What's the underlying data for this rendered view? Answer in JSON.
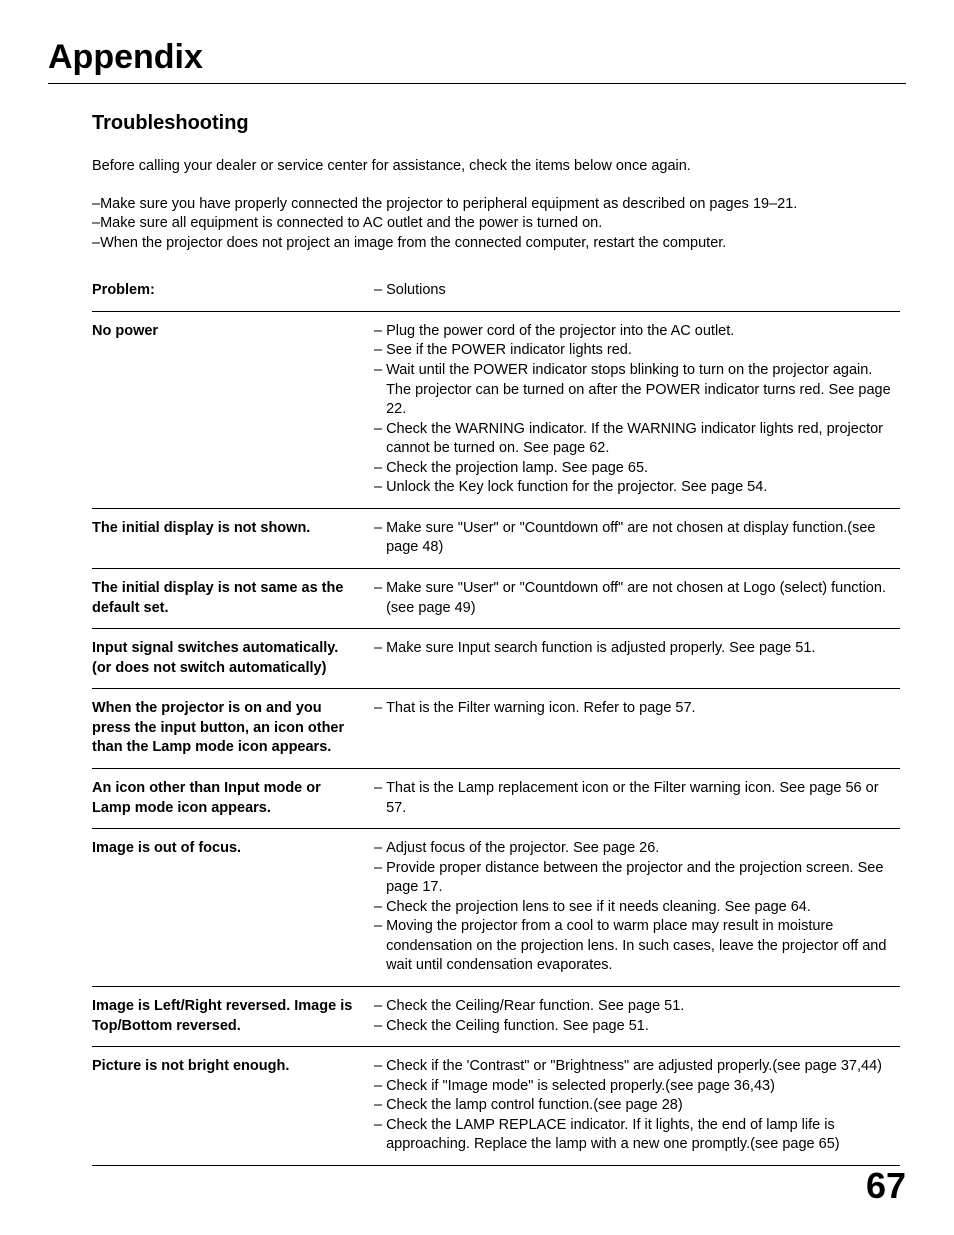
{
  "chapter_title": "Appendix",
  "section_title": "Troubleshooting",
  "intro": "Before calling your dealer or service center for assistance, check the items below once again.",
  "prechecks": [
    "–Make sure you have properly connected the projector to peripheral equipment as described on pages 19–21.",
    "–Make sure all equipment is connected to AC outlet and the power is turned on.",
    "–When the projector does not project an image from the connected computer, restart the computer."
  ],
  "table_header": {
    "problem": "Problem:",
    "solution": "– Solutions"
  },
  "rows": [
    {
      "problem": "No power",
      "solutions": [
        "Plug the power cord of the projector into the AC outlet.",
        "See if the POWER indicator lights red.",
        "Wait until the POWER indicator stops blinking to turn on the projector again. The projector can be turned on after the POWER indicator turns red. See page 22.",
        "Check the WARNING indicator. If the WARNING indicator lights red, projector cannot be turned on. See page 62.",
        "Check the projection lamp. See page 65.",
        "Unlock the Key lock function for the projector. See page 54."
      ]
    },
    {
      "problem": "The initial display is not shown.",
      "solutions": [
        "Make sure \"User\" or \"Countdown off\" are not chosen at display function.(see page 48)"
      ]
    },
    {
      "problem": "The initial display is not same as the default set.",
      "solutions": [
        "Make sure \"User\" or \"Countdown off\" are not chosen at Logo (select) function.(see page 49)"
      ]
    },
    {
      "problem": "Input signal switches automatically. (or does not switch automatically)",
      "solutions": [
        "Make sure Input search function is adjusted properly.  See page 51."
      ]
    },
    {
      "problem": "When the projector is on and you press the input button, an icon other than the Lamp mode icon appears.",
      "solutions": [
        "That is the Filter warning icon. Refer to page 57."
      ]
    },
    {
      "problem": "An icon other than Input mode or Lamp mode icon appears.",
      "solutions": [
        "That is the Lamp replacement icon or the Filter warning icon.  See page 56 or 57."
      ]
    },
    {
      "problem": "Image is out of focus.",
      "solutions": [
        "Adjust focus of the projector. See page 26.",
        "Provide proper distance between the projector and the projection screen. See page 17.",
        "Check the projection lens to see if it needs cleaning. See page 64.",
        "Moving the projector from a cool to warm place may result in moisture condensation on the projection lens. In such cases, leave the projector off and wait until condensation evaporates."
      ]
    },
    {
      "problem": "Image is Left/Right reversed. Image is Top/Bottom reversed.",
      "solutions": [
        "Check the Ceiling/Rear function. See page 51.",
        "Check the Ceiling function. See page 51."
      ]
    },
    {
      "problem": "Picture is not bright enough.",
      "solutions": [
        "Check if the 'Contrast\" or \"Brightness\" are adjusted properly.(see page 37,44)",
        "Check if \"Image mode\" is selected properly.(see page 36,43)",
        "Check the lamp control function.(see page 28)",
        "Check the LAMP REPLACE indicator. If it lights, the end of lamp life is approaching. Replace the lamp with a new one promptly.(see page 65)"
      ]
    }
  ],
  "page_number": "67",
  "colors": {
    "text": "#000000",
    "background": "#ffffff",
    "rule": "#000000"
  },
  "fonts": {
    "family": "Arial, Helvetica, sans-serif",
    "chapter_title_size": 34,
    "section_title_size": 20,
    "body_size": 14.5,
    "page_num_size": 36
  }
}
